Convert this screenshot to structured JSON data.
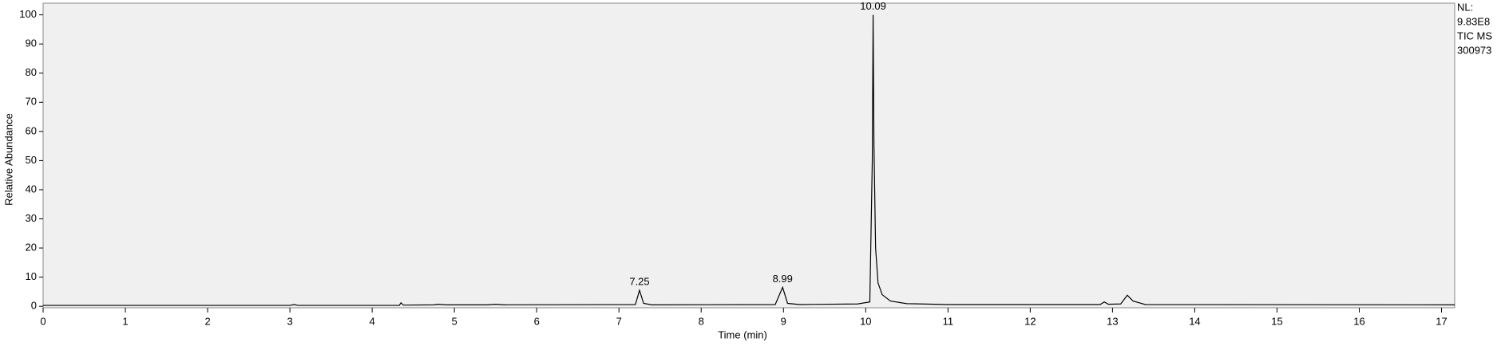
{
  "chart_data": {
    "type": "line",
    "xlabel": "Time (min)",
    "ylabel": "Relative Abundance",
    "info": [
      "NL:",
      "9.83E8",
      "TIC  MS",
      "300973"
    ],
    "x": [
      0,
      3.0,
      3.05,
      3.1,
      3.5,
      4.33,
      4.35,
      4.38,
      4.75,
      4.8,
      4.9,
      5.4,
      5.5,
      5.6,
      7.2,
      7.25,
      7.3,
      7.4,
      8.9,
      8.99,
      9.05,
      9.2,
      9.9,
      10.05,
      10.08,
      10.09,
      10.1,
      10.12,
      10.15,
      10.2,
      10.3,
      10.5,
      11,
      12.85,
      12.9,
      12.95,
      13.1,
      13.18,
      13.25,
      13.4,
      17.16
    ],
    "series": [
      {
        "color": "#000000",
        "values": [
          0.3,
          0.3,
          0.6,
          0.3,
          0.3,
          0.3,
          1.2,
          0.4,
          0.5,
          0.7,
          0.5,
          0.5,
          0.7,
          0.5,
          0.6,
          5.5,
          1.0,
          0.5,
          0.6,
          6.5,
          1.0,
          0.6,
          0.8,
          1.5,
          50,
          100,
          56,
          20,
          8,
          4,
          1.8,
          0.9,
          0.6,
          0.6,
          1.5,
          0.7,
          0.8,
          3.8,
          1.8,
          0.6,
          0.5
        ]
      }
    ],
    "annotations": [
      {
        "text": "7.25",
        "x": 7.25,
        "y": 5.5
      },
      {
        "text": "8.99",
        "x": 8.99,
        "y": 6.5
      },
      {
        "text": "10.09",
        "x": 10.09,
        "y": 100
      }
    ],
    "xlim": [
      0,
      17.16
    ],
    "ylim": [
      -0.5,
      104
    ],
    "xticks": [
      0,
      1,
      2,
      3,
      4,
      5,
      6,
      7,
      8,
      9,
      10,
      11,
      12,
      13,
      14,
      15,
      16,
      17
    ],
    "yticks": [
      0,
      10,
      20,
      30,
      40,
      50,
      60,
      70,
      80,
      90,
      100
    ]
  }
}
